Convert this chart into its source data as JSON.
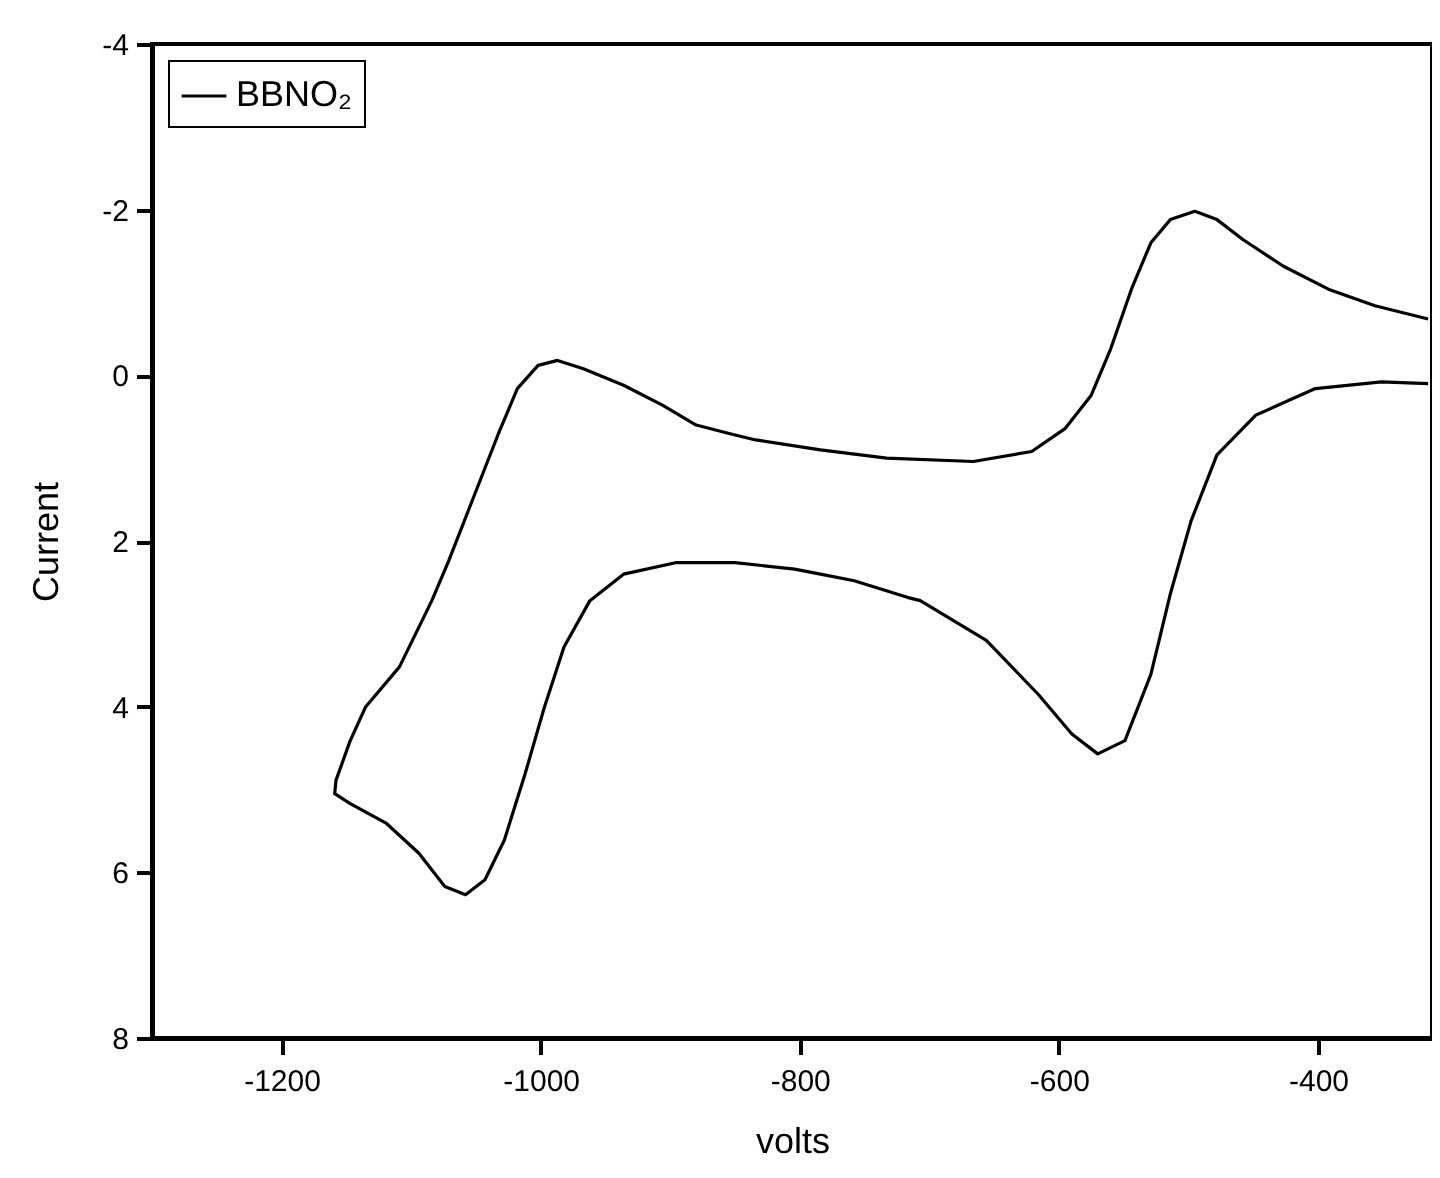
{
  "chart_data": {
    "type": "line",
    "xlabel": "volts",
    "ylabel": "Current",
    "xlim": [
      -1300,
      -312
    ],
    "ylim": [
      8,
      -4
    ],
    "xticks": [
      -1200,
      -1000,
      -800,
      -600,
      -400
    ],
    "yticks": [
      -4,
      -2,
      0,
      2,
      4,
      6,
      8
    ],
    "legend": "top left",
    "x": [
      -315,
      -356,
      -392,
      -427,
      -458,
      -478,
      -495,
      -514,
      -529,
      -544,
      -560,
      -575,
      -595,
      -621,
      -666,
      -733,
      -784,
      -834,
      -850,
      -880,
      -906,
      -936,
      -967,
      -987,
      -1002,
      -1018,
      -1033,
      -1053,
      -1071,
      -1084,
      -1109,
      -1135,
      -1147,
      -1158,
      -1159,
      -1147,
      -1119,
      -1094,
      -1074,
      -1058,
      -1043,
      -1028,
      -1012,
      -997,
      -982,
      -962,
      -936,
      -895,
      -850,
      -804,
      -784,
      -758,
      -717,
      -707,
      -656,
      -616,
      -590,
      -570,
      -549,
      -529,
      -514,
      -498,
      -478,
      -448,
      -402,
      -351,
      -315
    ],
    "series": [
      {
        "name": "BBNO₂",
        "color": "#000000",
        "values": [
          -0.68,
          -0.84,
          -1.04,
          -1.32,
          -1.64,
          -1.88,
          -1.98,
          -1.88,
          -1.6,
          -1.04,
          -0.32,
          0.24,
          0.64,
          0.92,
          1.04,
          1.0,
          0.9,
          0.78,
          0.72,
          0.6,
          0.36,
          0.12,
          -0.08,
          -0.18,
          -0.12,
          0.16,
          0.72,
          1.52,
          2.24,
          2.72,
          3.52,
          4.0,
          4.41,
          4.89,
          5.05,
          5.17,
          5.41,
          5.77,
          6.17,
          6.27,
          6.09,
          5.61,
          4.81,
          4.0,
          3.28,
          2.72,
          2.4,
          2.26,
          2.26,
          2.34,
          2.4,
          2.48,
          2.68,
          2.72,
          3.2,
          3.85,
          4.33,
          4.57,
          4.41,
          3.61,
          2.64,
          1.76,
          0.96,
          0.48,
          0.16,
          0.08,
          0.1
        ]
      }
    ]
  }
}
